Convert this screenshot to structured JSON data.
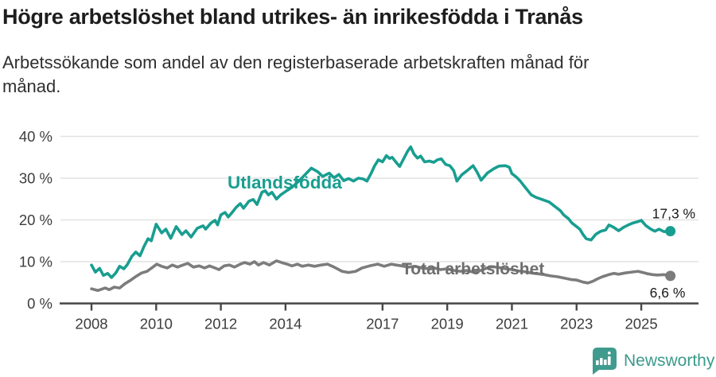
{
  "chart_data": {
    "type": "line",
    "title": "Högre arbetslöshet bland utrikes- än inrikesfödda i Tranås",
    "subtitle_line1": "Arbetssökande som andel av den registerbaserade arbetskraften månad för",
    "subtitle_line2": "månad.",
    "x_axis": {
      "domain": [
        2008.0,
        2025.9
      ],
      "ticks": [
        {
          "year": 2008,
          "label": "2008"
        },
        {
          "year": 2010,
          "label": "2010"
        },
        {
          "year": 2012,
          "label": "2012"
        },
        {
          "year": 2014,
          "label": "2014"
        },
        {
          "year": 2017,
          "label": "2017"
        },
        {
          "year": 2019,
          "label": "2019"
        },
        {
          "year": 2021,
          "label": "2021"
        },
        {
          "year": 2023,
          "label": "2023"
        },
        {
          "year": 2025,
          "label": "2025"
        }
      ]
    },
    "y_axis": {
      "domain": [
        0,
        40
      ],
      "unit": "%",
      "ticks": [
        {
          "value": 0,
          "label": "0 %"
        },
        {
          "value": 10,
          "label": "10 %"
        },
        {
          "value": 20,
          "label": "20 %"
        },
        {
          "value": 30,
          "label": "30 %"
        },
        {
          "value": 40,
          "label": "40 %"
        }
      ]
    },
    "grid": true,
    "series": [
      {
        "name": "Utlandsfödda",
        "color": "#189e90",
        "label_color": "#189e90",
        "end_label": "17,3 %",
        "end_value": 17.3,
        "points": [
          [
            2008.0,
            9.2
          ],
          [
            2008.12,
            7.5
          ],
          [
            2008.25,
            8.4
          ],
          [
            2008.37,
            6.7
          ],
          [
            2008.5,
            7.2
          ],
          [
            2008.62,
            6.2
          ],
          [
            2008.75,
            7.3
          ],
          [
            2008.87,
            8.9
          ],
          [
            2009.0,
            8.3
          ],
          [
            2009.1,
            9.2
          ],
          [
            2009.25,
            11.3
          ],
          [
            2009.37,
            12.3
          ],
          [
            2009.5,
            11.4
          ],
          [
            2009.62,
            13.6
          ],
          [
            2009.75,
            15.5
          ],
          [
            2009.85,
            15.0
          ],
          [
            2010.0,
            19.0
          ],
          [
            2010.17,
            16.9
          ],
          [
            2010.3,
            17.8
          ],
          [
            2010.45,
            15.6
          ],
          [
            2010.62,
            18.4
          ],
          [
            2010.8,
            16.5
          ],
          [
            2010.92,
            17.4
          ],
          [
            2011.08,
            15.9
          ],
          [
            2011.27,
            18.0
          ],
          [
            2011.45,
            18.6
          ],
          [
            2011.53,
            17.8
          ],
          [
            2011.7,
            19.3
          ],
          [
            2011.82,
            19.9
          ],
          [
            2011.9,
            18.8
          ],
          [
            2012.0,
            21.2
          ],
          [
            2012.13,
            21.8
          ],
          [
            2012.23,
            20.7
          ],
          [
            2012.35,
            21.8
          ],
          [
            2012.47,
            23.0
          ],
          [
            2012.6,
            23.9
          ],
          [
            2012.7,
            22.8
          ],
          [
            2012.87,
            24.5
          ],
          [
            2013.0,
            24.9
          ],
          [
            2013.12,
            23.7
          ],
          [
            2013.27,
            26.6
          ],
          [
            2013.37,
            27.0
          ],
          [
            2013.47,
            26.0
          ],
          [
            2013.58,
            26.6
          ],
          [
            2013.72,
            25.0
          ],
          [
            2013.85,
            26.0
          ],
          [
            2014.0,
            26.8
          ],
          [
            2014.2,
            27.8
          ],
          [
            2014.4,
            29.2
          ],
          [
            2014.6,
            30.8
          ],
          [
            2014.8,
            32.4
          ],
          [
            2015.0,
            31.5
          ],
          [
            2015.15,
            30.4
          ],
          [
            2015.35,
            31.2
          ],
          [
            2015.5,
            30.1
          ],
          [
            2015.65,
            30.9
          ],
          [
            2015.8,
            29.4
          ],
          [
            2015.95,
            29.9
          ],
          [
            2016.1,
            29.3
          ],
          [
            2016.25,
            30.0
          ],
          [
            2016.4,
            29.8
          ],
          [
            2016.52,
            29.3
          ],
          [
            2016.65,
            31.2
          ],
          [
            2016.75,
            32.9
          ],
          [
            2016.87,
            34.4
          ],
          [
            2017.0,
            33.9
          ],
          [
            2017.12,
            35.4
          ],
          [
            2017.22,
            34.7
          ],
          [
            2017.3,
            35.0
          ],
          [
            2017.42,
            33.8
          ],
          [
            2017.53,
            32.8
          ],
          [
            2017.65,
            34.6
          ],
          [
            2017.77,
            36.4
          ],
          [
            2017.87,
            37.5
          ],
          [
            2017.97,
            35.8
          ],
          [
            2018.08,
            34.8
          ],
          [
            2018.18,
            35.3
          ],
          [
            2018.3,
            33.9
          ],
          [
            2018.45,
            34.1
          ],
          [
            2018.58,
            33.8
          ],
          [
            2018.7,
            34.4
          ],
          [
            2018.82,
            34.6
          ],
          [
            2018.95,
            33.3
          ],
          [
            2019.08,
            33.0
          ],
          [
            2019.2,
            31.8
          ],
          [
            2019.3,
            29.3
          ],
          [
            2019.45,
            30.8
          ],
          [
            2019.6,
            31.7
          ],
          [
            2019.8,
            33.0
          ],
          [
            2019.92,
            31.5
          ],
          [
            2020.05,
            29.5
          ],
          [
            2020.25,
            31.3
          ],
          [
            2020.45,
            32.3
          ],
          [
            2020.6,
            32.9
          ],
          [
            2020.8,
            33.0
          ],
          [
            2020.92,
            32.6
          ],
          [
            2021.0,
            31.1
          ],
          [
            2021.15,
            30.2
          ],
          [
            2021.25,
            29.4
          ],
          [
            2021.4,
            27.9
          ],
          [
            2021.6,
            26.0
          ],
          [
            2021.75,
            25.4
          ],
          [
            2021.9,
            25.0
          ],
          [
            2022.0,
            24.7
          ],
          [
            2022.15,
            24.3
          ],
          [
            2022.25,
            23.7
          ],
          [
            2022.4,
            22.8
          ],
          [
            2022.5,
            22.2
          ],
          [
            2022.6,
            21.2
          ],
          [
            2022.75,
            20.3
          ],
          [
            2022.85,
            19.3
          ],
          [
            2023.0,
            18.4
          ],
          [
            2023.1,
            17.8
          ],
          [
            2023.2,
            16.5
          ],
          [
            2023.3,
            15.5
          ],
          [
            2023.45,
            15.2
          ],
          [
            2023.6,
            16.6
          ],
          [
            2023.75,
            17.3
          ],
          [
            2023.9,
            17.6
          ],
          [
            2024.0,
            18.8
          ],
          [
            2024.15,
            18.2
          ],
          [
            2024.3,
            17.4
          ],
          [
            2024.45,
            18.2
          ],
          [
            2024.6,
            18.8
          ],
          [
            2024.75,
            19.3
          ],
          [
            2024.9,
            19.6
          ],
          [
            2025.0,
            19.9
          ],
          [
            2025.15,
            18.6
          ],
          [
            2025.3,
            17.8
          ],
          [
            2025.42,
            17.3
          ],
          [
            2025.55,
            17.8
          ],
          [
            2025.7,
            17.2
          ],
          [
            2025.9,
            17.3
          ]
        ]
      },
      {
        "name": "Total arbetslöshet",
        "color": "#7c7c7c",
        "label_color": "#6e6e6e",
        "end_label": "6,6 %",
        "end_value": 6.6,
        "points": [
          [
            2008.0,
            3.5
          ],
          [
            2008.2,
            3.1
          ],
          [
            2008.42,
            3.7
          ],
          [
            2008.55,
            3.3
          ],
          [
            2008.7,
            3.9
          ],
          [
            2008.87,
            3.7
          ],
          [
            2009.03,
            4.7
          ],
          [
            2009.18,
            5.4
          ],
          [
            2009.4,
            6.6
          ],
          [
            2009.55,
            7.3
          ],
          [
            2009.72,
            7.7
          ],
          [
            2009.9,
            8.7
          ],
          [
            2010.02,
            9.4
          ],
          [
            2010.17,
            8.9
          ],
          [
            2010.34,
            8.5
          ],
          [
            2010.5,
            9.2
          ],
          [
            2010.66,
            8.7
          ],
          [
            2010.83,
            9.2
          ],
          [
            2010.98,
            9.6
          ],
          [
            2011.15,
            8.7
          ],
          [
            2011.33,
            9.0
          ],
          [
            2011.5,
            8.5
          ],
          [
            2011.65,
            9.0
          ],
          [
            2011.82,
            8.5
          ],
          [
            2011.94,
            8.1
          ],
          [
            2012.1,
            9.0
          ],
          [
            2012.26,
            9.2
          ],
          [
            2012.42,
            8.7
          ],
          [
            2012.6,
            9.4
          ],
          [
            2012.74,
            9.8
          ],
          [
            2012.9,
            9.4
          ],
          [
            2013.04,
            10.0
          ],
          [
            2013.16,
            9.2
          ],
          [
            2013.32,
            9.8
          ],
          [
            2013.5,
            9.2
          ],
          [
            2013.63,
            9.8
          ],
          [
            2013.72,
            10.2
          ],
          [
            2013.88,
            9.8
          ],
          [
            2014.05,
            9.4
          ],
          [
            2014.2,
            9.0
          ],
          [
            2014.37,
            9.4
          ],
          [
            2014.52,
            8.9
          ],
          [
            2014.7,
            9.2
          ],
          [
            2014.9,
            8.9
          ],
          [
            2015.1,
            9.2
          ],
          [
            2015.3,
            9.4
          ],
          [
            2015.5,
            8.7
          ],
          [
            2015.75,
            7.7
          ],
          [
            2015.95,
            7.4
          ],
          [
            2016.17,
            7.7
          ],
          [
            2016.37,
            8.5
          ],
          [
            2016.6,
            9.0
          ],
          [
            2016.85,
            9.4
          ],
          [
            2017.05,
            8.9
          ],
          [
            2017.27,
            9.4
          ],
          [
            2017.42,
            9.2
          ],
          [
            2017.6,
            9.0
          ],
          [
            2017.8,
            8.7
          ],
          [
            2018.0,
            8.9
          ],
          [
            2018.2,
            8.5
          ],
          [
            2018.4,
            8.3
          ],
          [
            2018.6,
            8.5
          ],
          [
            2018.8,
            8.1
          ],
          [
            2019.0,
            8.3
          ],
          [
            2019.2,
            7.9
          ],
          [
            2019.4,
            7.7
          ],
          [
            2019.6,
            7.9
          ],
          [
            2019.8,
            7.5
          ],
          [
            2020.0,
            7.8
          ],
          [
            2020.2,
            8.4
          ],
          [
            2020.4,
            8.8
          ],
          [
            2020.6,
            8.6
          ],
          [
            2020.8,
            8.3
          ],
          [
            2021.0,
            8.1
          ],
          [
            2021.2,
            7.8
          ],
          [
            2021.4,
            7.6
          ],
          [
            2021.6,
            7.3
          ],
          [
            2021.8,
            7.1
          ],
          [
            2022.0,
            6.9
          ],
          [
            2022.2,
            6.6
          ],
          [
            2022.4,
            6.4
          ],
          [
            2022.6,
            6.1
          ],
          [
            2022.85,
            5.7
          ],
          [
            2023.0,
            5.6
          ],
          [
            2023.2,
            5.1
          ],
          [
            2023.35,
            4.9
          ],
          [
            2023.5,
            5.3
          ],
          [
            2023.65,
            5.9
          ],
          [
            2023.8,
            6.4
          ],
          [
            2024.0,
            6.9
          ],
          [
            2024.15,
            7.2
          ],
          [
            2024.3,
            7.0
          ],
          [
            2024.5,
            7.3
          ],
          [
            2024.7,
            7.5
          ],
          [
            2024.9,
            7.7
          ],
          [
            2025.05,
            7.4
          ],
          [
            2025.2,
            7.1
          ],
          [
            2025.35,
            6.9
          ],
          [
            2025.5,
            6.8
          ],
          [
            2025.7,
            6.9
          ],
          [
            2025.9,
            6.6
          ]
        ]
      }
    ],
    "legend": "inline-labels"
  },
  "branding": {
    "name": "Newsworthy",
    "color": "#3b9a8c",
    "icon": "newsworthy-bar-chart-bubble-icon"
  }
}
